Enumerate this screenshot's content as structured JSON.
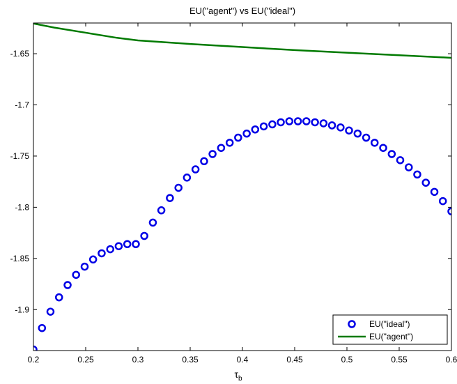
{
  "chart_data": {
    "type": "line",
    "title": "EU(\"agent\") vs EU(\"ideal\")",
    "xlabel": "τ",
    "xlabel_subscript": "b",
    "ylabel": "",
    "xlim": [
      0.2,
      0.6
    ],
    "ylim": [
      -1.94,
      -1.62
    ],
    "xticks": [
      0.2,
      0.25,
      0.3,
      0.35,
      0.4,
      0.45,
      0.5,
      0.55,
      0.6
    ],
    "xtick_labels": [
      "0.2",
      "0.25",
      "0.3",
      "0.35",
      "0.4",
      "0.45",
      "0.5",
      "0.55",
      "0.6"
    ],
    "yticks": [
      -1.9,
      -1.85,
      -1.8,
      -1.75,
      -1.7,
      -1.65
    ],
    "ytick_labels": [
      "-1.9",
      "-1.85",
      "-1.8",
      "-1.75",
      "-1.7",
      "-1.65"
    ],
    "grid": false,
    "legend_position": "bottom-right",
    "series": [
      {
        "name": "EU(\"ideal\")",
        "style": "markers",
        "marker": "circle",
        "color": "#0000e6",
        "x": [
          0.2,
          0.2082,
          0.2163,
          0.2245,
          0.2327,
          0.2408,
          0.249,
          0.2571,
          0.2653,
          0.2735,
          0.2816,
          0.2898,
          0.298,
          0.3061,
          0.3143,
          0.3224,
          0.3306,
          0.3388,
          0.3469,
          0.3551,
          0.3633,
          0.3714,
          0.3796,
          0.3878,
          0.3959,
          0.4041,
          0.4122,
          0.4204,
          0.4286,
          0.4367,
          0.4449,
          0.4531,
          0.4612,
          0.4694,
          0.4776,
          0.4857,
          0.4939,
          0.502,
          0.5102,
          0.5184,
          0.5265,
          0.5347,
          0.5429,
          0.551,
          0.5592,
          0.5673,
          0.5755,
          0.5837,
          0.5918,
          0.6
        ],
        "y": [
          -1.939,
          -1.918,
          -1.902,
          -1.888,
          -1.876,
          -1.866,
          -1.858,
          -1.851,
          -1.845,
          -1.841,
          -1.838,
          -1.836,
          -1.836,
          -1.828,
          -1.815,
          -1.803,
          -1.791,
          -1.781,
          -1.771,
          -1.763,
          -1.755,
          -1.748,
          -1.742,
          -1.737,
          -1.732,
          -1.728,
          -1.724,
          -1.721,
          -1.719,
          -1.717,
          -1.716,
          -1.716,
          -1.716,
          -1.717,
          -1.718,
          -1.72,
          -1.722,
          -1.725,
          -1.728,
          -1.732,
          -1.737,
          -1.742,
          -1.748,
          -1.754,
          -1.761,
          -1.768,
          -1.776,
          -1.785,
          -1.794,
          -1.804
        ]
      },
      {
        "name": "EU(\"agent\")",
        "style": "line",
        "color": "#007a00",
        "x": [
          0.2,
          0.22,
          0.25,
          0.28,
          0.3,
          0.35,
          0.4,
          0.45,
          0.5,
          0.55,
          0.6
        ],
        "y": [
          -1.6205,
          -1.6245,
          -1.6295,
          -1.6345,
          -1.637,
          -1.6405,
          -1.6435,
          -1.6465,
          -1.649,
          -1.6515,
          -1.654
        ]
      }
    ]
  }
}
